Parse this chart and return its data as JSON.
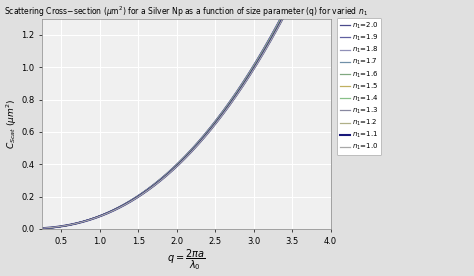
{
  "title": "Scattering Cross−section (μm²) for a Silver Np as a function of size parameter (q) for varied $n_1$",
  "xlim": [
    0.25,
    4.0
  ],
  "ylim": [
    0.0,
    1.3
  ],
  "xticks": [
    0.5,
    1.0,
    1.5,
    2.0,
    2.5,
    3.0,
    3.5,
    4.0
  ],
  "yticks": [
    0.0,
    0.2,
    0.4,
    0.6,
    0.8,
    1.0,
    1.2
  ],
  "n1_values": [
    2.0,
    1.9,
    1.8,
    1.7,
    1.6,
    1.5,
    1.4,
    1.3,
    1.2,
    1.1,
    1.0
  ],
  "color_map": {
    "2.0": "#4a4a8c",
    "1.9": "#6060a0",
    "1.8": "#9090b8",
    "1.7": "#7090a8",
    "1.6": "#80a880",
    "1.5": "#c0b060",
    "1.4": "#88c088",
    "1.3": "#8888a0",
    "1.2": "#b0b088",
    "1.1": "#18187a",
    "1.0": "#a8a8a8"
  },
  "lw_map": {
    "2.0": 0.9,
    "1.9": 0.9,
    "1.8": 0.9,
    "1.7": 0.9,
    "1.6": 0.9,
    "1.5": 0.9,
    "1.4": 0.9,
    "1.3": 0.9,
    "1.2": 0.9,
    "1.1": 1.5,
    "1.0": 0.9
  },
  "background_color": "#f0f0f0",
  "fig_bg": "#e0e0e0",
  "grid_color": "#ffffff",
  "title_fontsize": 5.5,
  "xlabel_fontsize": 7,
  "ylabel_fontsize": 6.5,
  "tick_fontsize": 6,
  "legend_fontsize": 5.0,
  "scale": 0.08,
  "power": 2.3,
  "n1_effect": 0.04
}
